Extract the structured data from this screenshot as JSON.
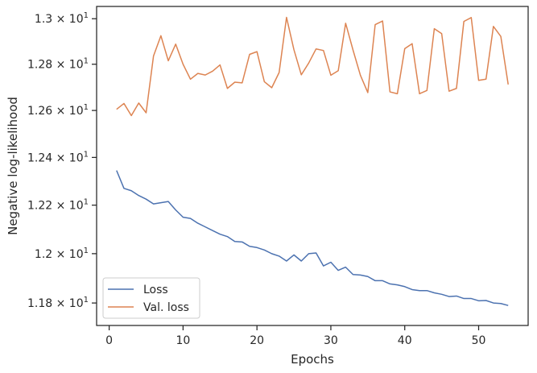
{
  "chart_data": {
    "type": "line",
    "title": "",
    "xlabel": "Epochs",
    "ylabel": "Negative log-likelihood",
    "yscale": "log",
    "xlim": [
      -1.7,
      56.7
    ],
    "ylim": [
      11.71,
      13.0545
    ],
    "grid": false,
    "legend_position": "lower-left",
    "x_ticks": [
      0,
      10,
      20,
      30,
      40,
      50
    ],
    "y_ticks": [
      {
        "value": 11.8,
        "mantissa": "1.18"
      },
      {
        "value": 12.0,
        "mantissa": "1.2"
      },
      {
        "value": 12.2,
        "mantissa": "1.22"
      },
      {
        "value": 12.4,
        "mantissa": "1.24"
      },
      {
        "value": 12.6,
        "mantissa": "1.26"
      },
      {
        "value": 12.8,
        "mantissa": "1.28"
      },
      {
        "value": 13.0,
        "mantissa": "1.3"
      }
    ],
    "y_tick_suffix": "× 10",
    "y_tick_exponent": "1",
    "x": [
      1,
      2,
      3,
      4,
      5,
      6,
      7,
      8,
      9,
      10,
      11,
      12,
      13,
      14,
      15,
      16,
      17,
      18,
      19,
      20,
      21,
      22,
      23,
      24,
      25,
      26,
      27,
      28,
      29,
      30,
      31,
      32,
      33,
      34,
      35,
      36,
      37,
      38,
      39,
      40,
      41,
      42,
      43,
      44,
      45,
      46,
      47,
      48,
      49,
      50,
      51,
      52,
      53,
      54
    ],
    "series": [
      {
        "name": "Loss",
        "color": "#4c72b0",
        "values": [
          12.345,
          12.27,
          12.26,
          12.24,
          12.225,
          12.205,
          12.21,
          12.215,
          12.18,
          12.15,
          12.145,
          12.125,
          12.11,
          12.095,
          12.08,
          12.07,
          12.05,
          12.048,
          12.03,
          12.025,
          12.015,
          12.0,
          11.99,
          11.97,
          11.995,
          11.97,
          12.0,
          12.003,
          11.95,
          11.965,
          11.932,
          11.945,
          11.915,
          11.913,
          11.907,
          11.89,
          11.89,
          11.877,
          11.873,
          11.866,
          11.854,
          11.85,
          11.85,
          11.841,
          11.835,
          11.826,
          11.828,
          11.818,
          11.818,
          11.809,
          11.81,
          11.8,
          11.798,
          11.79
        ]
      },
      {
        "name": "Val. loss",
        "color": "#dd8452",
        "values": [
          12.605,
          12.63,
          12.578,
          12.632,
          12.59,
          12.836,
          12.925,
          12.815,
          12.888,
          12.8,
          12.735,
          12.76,
          12.753,
          12.77,
          12.797,
          12.695,
          12.722,
          12.719,
          12.843,
          12.855,
          12.724,
          12.698,
          12.764,
          13.006,
          12.864,
          12.754,
          12.805,
          12.867,
          12.86,
          12.752,
          12.772,
          12.98,
          12.862,
          12.752,
          12.677,
          12.974,
          12.99,
          12.68,
          12.672,
          12.868,
          12.89,
          12.672,
          12.686,
          12.956,
          12.934,
          12.683,
          12.695,
          12.988,
          13.005,
          12.73,
          12.735,
          12.966,
          12.922,
          12.712
        ]
      }
    ]
  }
}
